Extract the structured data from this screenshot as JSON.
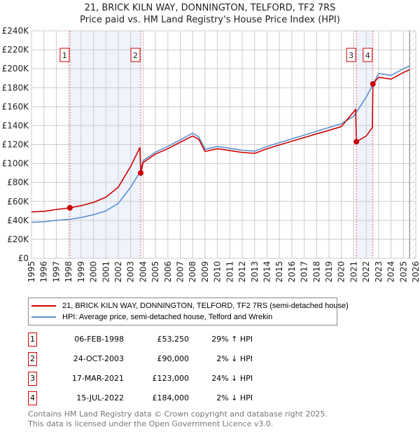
{
  "title": "21, BRICK KILN WAY, DONNINGTON, TELFORD, TF2 7RS",
  "subtitle": "Price paid vs. HM Land Registry's House Price Index (HPI)",
  "legend": {
    "red": "21, BRICK KILN WAY, DONNINGTON, TELFORD, TF2 7RS (semi-detached house)",
    "blue": "HPI: Average price, semi-detached house, Telford and Wrekin"
  },
  "sales": [
    {
      "num": "1",
      "date": "06-FEB-1998",
      "price": "£53,250",
      "hpi": "29% ↑ HPI"
    },
    {
      "num": "2",
      "date": "24-OCT-2003",
      "price": "£90,000",
      "hpi": "2% ↓ HPI"
    },
    {
      "num": "3",
      "date": "17-MAR-2021",
      "price": "£123,000",
      "hpi": "24% ↓ HPI"
    },
    {
      "num": "4",
      "date": "15-JUL-2022",
      "price": "£184,000",
      "hpi": "2% ↓ HPI"
    }
  ],
  "footer": [
    "Contains HM Land Registry data © Crown copyright and database right 2025.",
    "This data is licensed under the Open Government Licence v3.0."
  ],
  "chart_data": {
    "type": "line",
    "xlim": [
      1995,
      2026
    ],
    "ylim": [
      0,
      240000
    ],
    "yticks": [
      "£0",
      "£20K",
      "£40K",
      "£60K",
      "£80K",
      "£100K",
      "£120K",
      "£140K",
      "£160K",
      "£180K",
      "£200K",
      "£220K",
      "£240K"
    ],
    "xticks": [
      "1995",
      "1996",
      "1997",
      "1998",
      "1999",
      "2000",
      "2001",
      "2002",
      "2003",
      "2004",
      "2005",
      "2006",
      "2007",
      "2008",
      "2009",
      "2010",
      "2011",
      "2012",
      "2013",
      "2014",
      "2015",
      "2016",
      "2017",
      "2018",
      "2019",
      "2020",
      "2021",
      "2022",
      "2023",
      "2024",
      "2025",
      "2026"
    ],
    "colors": {
      "red": "#cc0000",
      "blue": "#5b8fd0"
    },
    "shaded": [
      [
        1998.1,
        2003.81
      ],
      [
        2021.21,
        2022.54
      ]
    ],
    "forecast_from": 2025.5,
    "sale_points": [
      {
        "label": "1",
        "x": 1998.1,
        "y": 53250
      },
      {
        "label": "2",
        "x": 2003.81,
        "y": 90000
      },
      {
        "label": "3",
        "x": 2021.21,
        "y": 123000
      },
      {
        "label": "4",
        "x": 2022.54,
        "y": 184000
      }
    ],
    "series": [
      {
        "name": "HPI",
        "color": "#5b8fd0",
        "x": [
          1995,
          1996,
          1997,
          1998,
          1999,
          2000,
          2001,
          2002,
          2003,
          2003.8,
          2004,
          2005,
          2006,
          2007,
          2008,
          2008.5,
          2009,
          2010,
          2011,
          2012,
          2013,
          2014,
          2015,
          2016,
          2017,
          2018,
          2019,
          2020,
          2021,
          2022,
          2023,
          2024,
          2025,
          2025.5
        ],
        "y": [
          38000,
          38500,
          40000,
          41000,
          43000,
          46000,
          50000,
          58000,
          75000,
          92000,
          103000,
          112000,
          118000,
          125000,
          132000,
          128000,
          115000,
          118000,
          116000,
          114000,
          113000,
          118000,
          122000,
          126000,
          130000,
          134000,
          138000,
          142000,
          150000,
          170000,
          195000,
          193000,
          200000,
          203000
        ]
      },
      {
        "name": "Property",
        "color": "#cc0000",
        "x": [
          1995,
          1996,
          1997,
          1998.1,
          1999,
          2000,
          2001,
          2002,
          2003,
          2003.75,
          2003.81,
          2004,
          2005,
          2006,
          2007,
          2008,
          2008.5,
          2009,
          2010,
          2011,
          2012,
          2013,
          2014,
          2015,
          2016,
          2017,
          2018,
          2019,
          2020,
          2021.15,
          2021.21,
          2022,
          2022.5,
          2022.54,
          2023,
          2024,
          2025,
          2025.5
        ],
        "y": [
          49000,
          49500,
          51500,
          53250,
          55500,
          59000,
          64500,
          75000,
          97000,
          117000,
          90000,
          101000,
          110000,
          115600,
          122500,
          129000,
          125500,
          112700,
          115600,
          113700,
          111700,
          110700,
          115600,
          119600,
          123500,
          127400,
          131300,
          135000,
          139000,
          157000,
          123000,
          129000,
          138000,
          184000,
          191000,
          189000,
          196000,
          199000
        ]
      }
    ]
  }
}
